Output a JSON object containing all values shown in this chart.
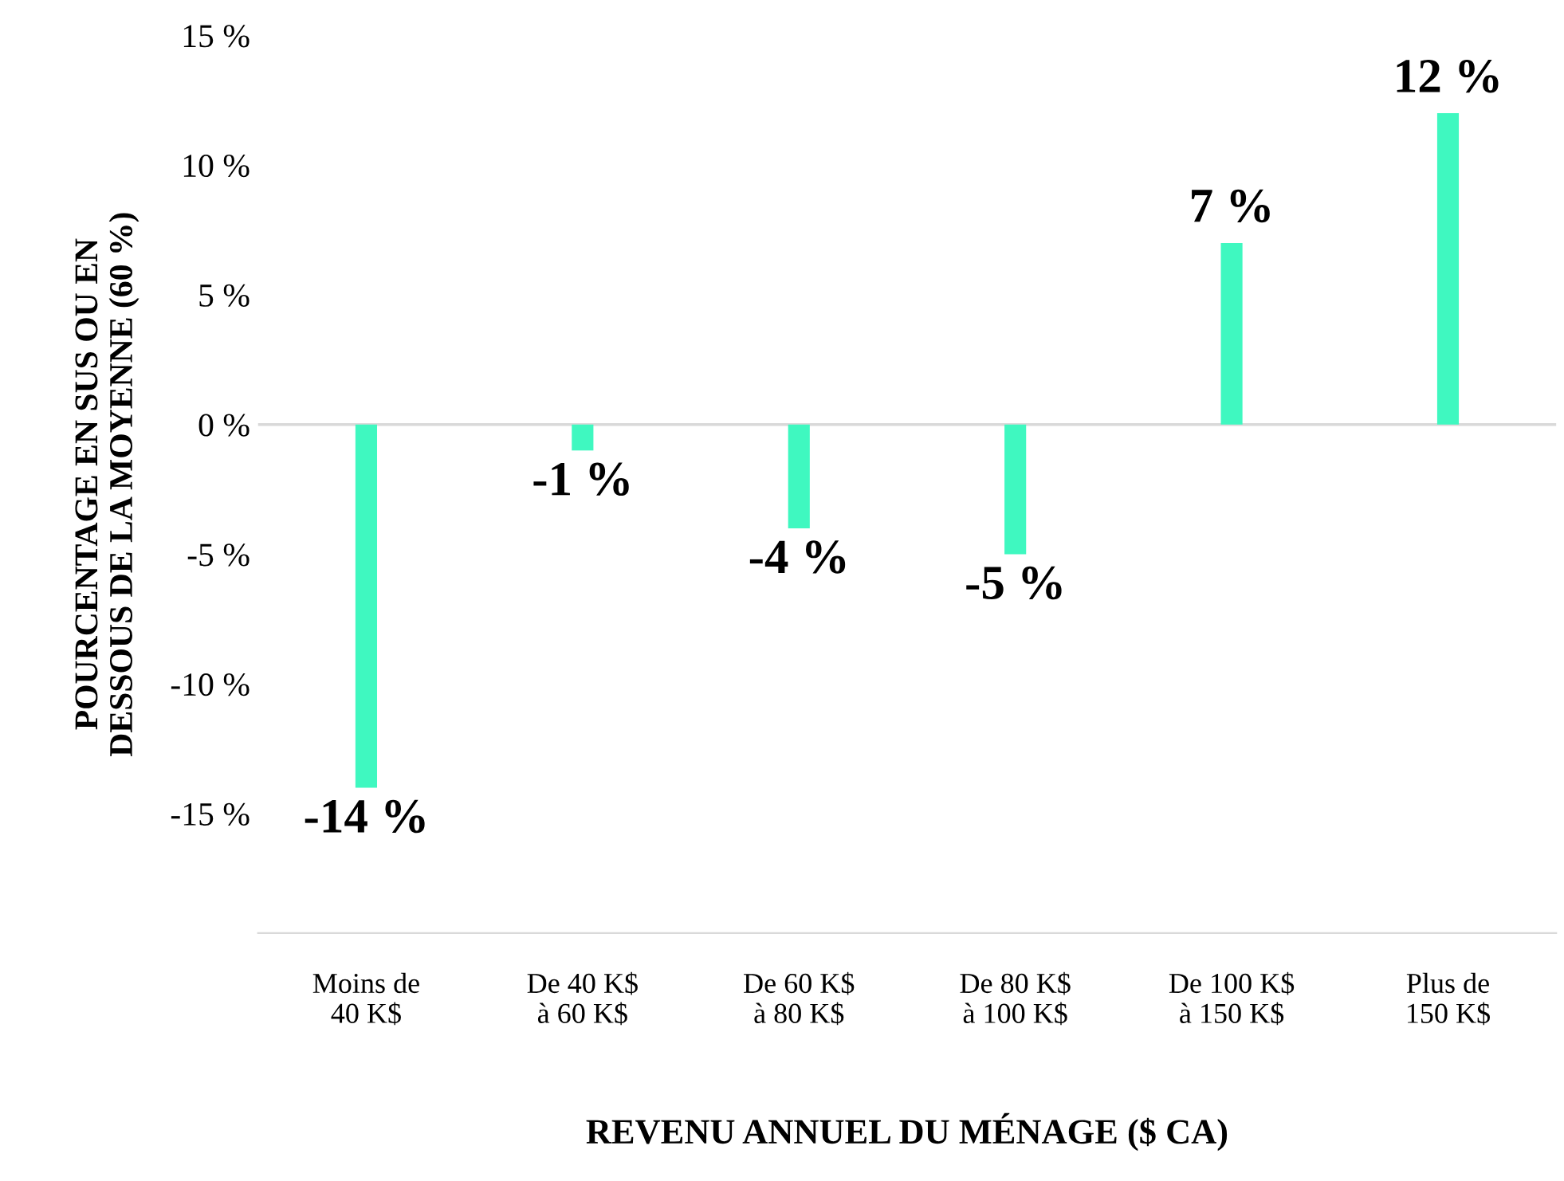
{
  "chart_data": {
    "type": "bar",
    "xlabel": "REVENU ANNUEL DU MÉNAGE ($ CA)",
    "ylabel": "POURCENTAGE EN SUS OU EN\nDESSOUS DE LA MOYENNE (60 %)",
    "categories": [
      "Moins de\n40 K$",
      "De 40 K$\nà 60 K$",
      "De 60 K$\nà 80 K$",
      "De 80 K$\nà 100 K$",
      "De 100 K$\nà 150 K$",
      "Plus de\n150 K$"
    ],
    "values": [
      -14,
      -1,
      -4,
      -5,
      7,
      12
    ],
    "value_labels": [
      "-14 %",
      "-1 %",
      "-4 %",
      "-5 %",
      "7 %",
      "12 %"
    ],
    "color": "#3ff8c0",
    "ylim": [
      -19.6,
      15
    ],
    "yticks": [
      {
        "value": -15,
        "label": "-15 %"
      },
      {
        "value": -10,
        "label": "-10 %"
      },
      {
        "value": -5,
        "label": "-5 %"
      },
      {
        "value": 0,
        "label": "0 %"
      },
      {
        "value": 5,
        "label": "5 %"
      },
      {
        "value": 10,
        "label": "10 %"
      },
      {
        "value": 15,
        "label": "15 %"
      }
    ],
    "ref_lines": [
      {
        "axis": "y",
        "value": 0,
        "color": "#d9d9d9"
      }
    ],
    "grid": false,
    "legend": false
  }
}
